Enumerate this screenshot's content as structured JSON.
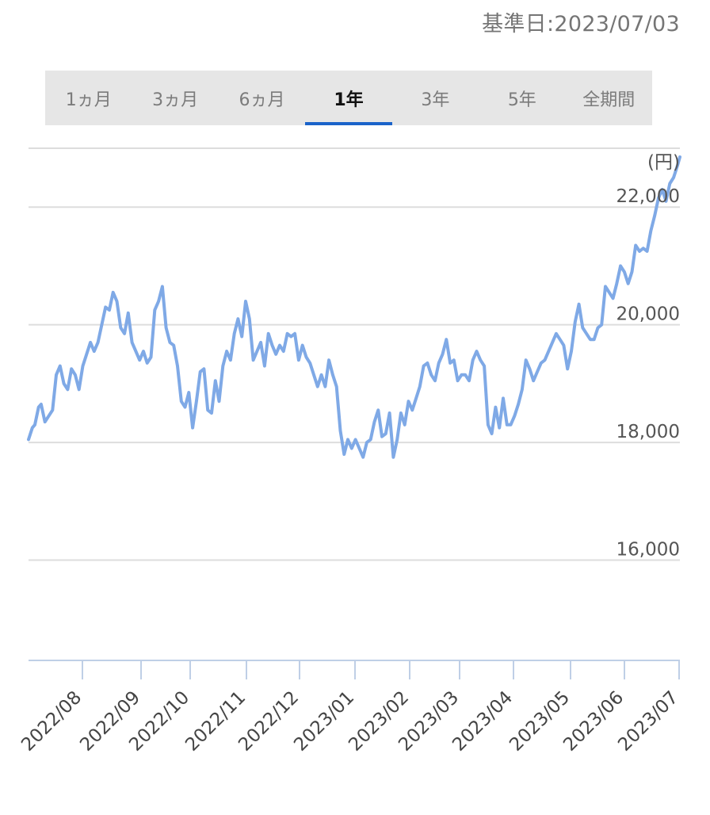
{
  "header": {
    "base_date": "基準日:2023/07/03"
  },
  "tabs": [
    {
      "label": "1ヵ月",
      "active": false
    },
    {
      "label": "3ヵ月",
      "active": false
    },
    {
      "label": "6ヵ月",
      "active": false
    },
    {
      "label": "1年",
      "active": true
    },
    {
      "label": "3年",
      "active": false
    },
    {
      "label": "5年",
      "active": false
    },
    {
      "label": "全期間",
      "active": false
    }
  ],
  "colors": {
    "line": "#7fa9e6",
    "accent": "#1a63c9",
    "grid": "#dddddd",
    "axis": "#bfcfe6"
  },
  "chart_data": {
    "type": "line",
    "unit_label": "(円)",
    "ylim": [
      14000,
      23000
    ],
    "yticks": [
      16000,
      18000,
      20000,
      22000
    ],
    "ytick_labels": [
      "16,000",
      "18,000",
      "20,000",
      "22,000"
    ],
    "grid": true,
    "xtick_labels": [
      "2022/08",
      "2022/09",
      "2022/10",
      "2022/11",
      "2022/12",
      "2023/01",
      "2023/02",
      "2023/03",
      "2023/04",
      "2023/05",
      "2023/06",
      "2023/07"
    ],
    "series": [
      {
        "values": [
          [
            0,
            18050
          ],
          [
            3,
            18250
          ],
          [
            5,
            18300
          ],
          [
            8,
            18600
          ],
          [
            10,
            18650
          ],
          [
            13,
            18350
          ],
          [
            16,
            18450
          ],
          [
            19,
            18550
          ],
          [
            22,
            19150
          ],
          [
            25,
            19300
          ],
          [
            28,
            19000
          ],
          [
            31,
            18900
          ],
          [
            34,
            19250
          ],
          [
            37,
            19150
          ],
          [
            40,
            18900
          ],
          [
            43,
            19300
          ],
          [
            46,
            19500
          ],
          [
            49,
            19700
          ],
          [
            52,
            19550
          ],
          [
            55,
            19700
          ],
          [
            58,
            20000
          ],
          [
            61,
            20300
          ],
          [
            64,
            20250
          ],
          [
            67,
            20550
          ],
          [
            70,
            20400
          ],
          [
            73,
            19950
          ],
          [
            76,
            19850
          ],
          [
            79,
            20200
          ],
          [
            82,
            19700
          ],
          [
            85,
            19550
          ],
          [
            88,
            19400
          ],
          [
            91,
            19550
          ],
          [
            94,
            19350
          ],
          [
            97,
            19450
          ],
          [
            100,
            20250
          ],
          [
            103,
            20400
          ],
          [
            106,
            20650
          ],
          [
            109,
            19950
          ],
          [
            112,
            19700
          ],
          [
            115,
            19650
          ],
          [
            118,
            19300
          ],
          [
            121,
            18700
          ],
          [
            124,
            18600
          ],
          [
            127,
            18850
          ],
          [
            130,
            18250
          ],
          [
            133,
            18700
          ],
          [
            136,
            19200
          ],
          [
            139,
            19250
          ],
          [
            142,
            18550
          ],
          [
            145,
            18500
          ],
          [
            148,
            19050
          ],
          [
            151,
            18700
          ],
          [
            154,
            19300
          ],
          [
            157,
            19550
          ],
          [
            160,
            19400
          ],
          [
            163,
            19850
          ],
          [
            166,
            20100
          ],
          [
            169,
            19800
          ],
          [
            172,
            20400
          ],
          [
            175,
            20100
          ],
          [
            178,
            19400
          ],
          [
            181,
            19550
          ],
          [
            184,
            19700
          ],
          [
            187,
            19300
          ],
          [
            190,
            19850
          ],
          [
            193,
            19650
          ],
          [
            196,
            19500
          ],
          [
            199,
            19650
          ],
          [
            202,
            19550
          ],
          [
            205,
            19850
          ],
          [
            208,
            19800
          ],
          [
            211,
            19850
          ],
          [
            214,
            19400
          ],
          [
            217,
            19650
          ],
          [
            220,
            19450
          ],
          [
            223,
            19350
          ],
          [
            226,
            19150
          ],
          [
            229,
            18950
          ],
          [
            232,
            19150
          ],
          [
            235,
            18950
          ],
          [
            238,
            19400
          ],
          [
            241,
            19150
          ],
          [
            244,
            18950
          ],
          [
            247,
            18200
          ],
          [
            250,
            17800
          ],
          [
            253,
            18050
          ],
          [
            256,
            17900
          ],
          [
            259,
            18050
          ],
          [
            262,
            17900
          ],
          [
            265,
            17750
          ],
          [
            268,
            18000
          ],
          [
            271,
            18050
          ],
          [
            274,
            18350
          ],
          [
            277,
            18550
          ],
          [
            280,
            18100
          ],
          [
            283,
            18150
          ],
          [
            286,
            18500
          ],
          [
            289,
            17750
          ],
          [
            292,
            18050
          ],
          [
            295,
            18500
          ],
          [
            298,
            18300
          ],
          [
            301,
            18700
          ],
          [
            304,
            18550
          ],
          [
            307,
            18750
          ],
          [
            310,
            18950
          ],
          [
            313,
            19300
          ],
          [
            316,
            19350
          ],
          [
            319,
            19150
          ],
          [
            322,
            19050
          ],
          [
            325,
            19350
          ],
          [
            328,
            19500
          ],
          [
            331,
            19750
          ],
          [
            334,
            19350
          ],
          [
            337,
            19400
          ],
          [
            340,
            19050
          ],
          [
            343,
            19150
          ],
          [
            346,
            19150
          ],
          [
            349,
            19050
          ],
          [
            352,
            19400
          ],
          [
            355,
            19550
          ],
          [
            358,
            19400
          ],
          [
            361,
            19300
          ],
          [
            364,
            18300
          ],
          [
            367,
            18150
          ],
          [
            370,
            18600
          ],
          [
            373,
            18250
          ],
          [
            376,
            18750
          ],
          [
            379,
            18300
          ],
          [
            382,
            18300
          ],
          [
            385,
            18450
          ],
          [
            388,
            18650
          ],
          [
            391,
            18900
          ],
          [
            394,
            19400
          ],
          [
            397,
            19250
          ],
          [
            400,
            19050
          ],
          [
            403,
            19200
          ],
          [
            406,
            19350
          ],
          [
            409,
            19400
          ],
          [
            412,
            19550
          ],
          [
            415,
            19700
          ],
          [
            418,
            19850
          ],
          [
            421,
            19750
          ],
          [
            424,
            19650
          ],
          [
            427,
            19250
          ],
          [
            430,
            19550
          ],
          [
            433,
            20050
          ],
          [
            436,
            20350
          ],
          [
            439,
            19950
          ],
          [
            442,
            19850
          ],
          [
            445,
            19750
          ],
          [
            448,
            19750
          ],
          [
            451,
            19950
          ],
          [
            454,
            20000
          ],
          [
            457,
            20650
          ],
          [
            460,
            20550
          ],
          [
            463,
            20450
          ],
          [
            466,
            20700
          ],
          [
            469,
            21000
          ],
          [
            472,
            20900
          ],
          [
            475,
            20700
          ],
          [
            478,
            20900
          ],
          [
            481,
            21350
          ],
          [
            484,
            21250
          ],
          [
            487,
            21300
          ],
          [
            490,
            21250
          ],
          [
            493,
            21600
          ],
          [
            496,
            21850
          ],
          [
            499,
            22150
          ],
          [
            502,
            22300
          ],
          [
            505,
            22100
          ],
          [
            508,
            22400
          ],
          [
            511,
            22500
          ],
          [
            514,
            22700
          ],
          [
            516,
            22850
          ]
        ]
      }
    ]
  }
}
